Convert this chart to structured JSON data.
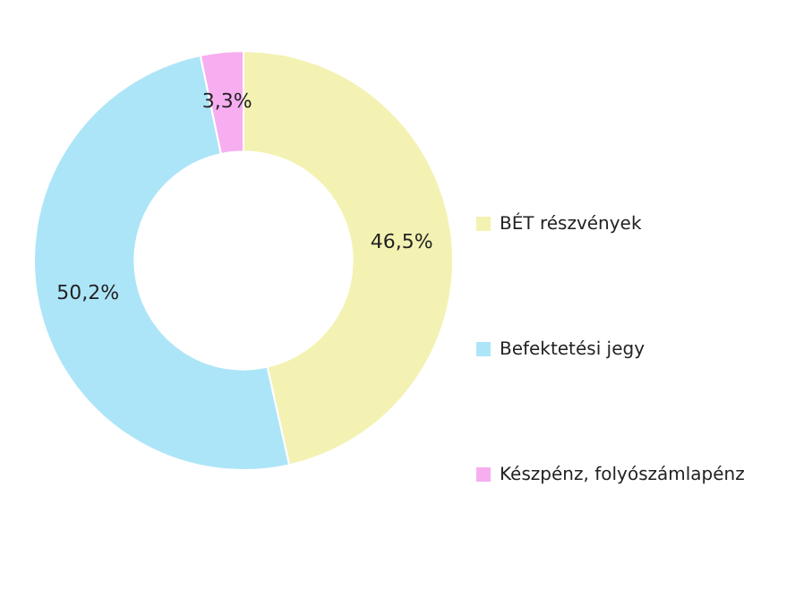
{
  "chart_data": {
    "type": "donut",
    "categories": [
      "BÉT részvények",
      "Befektetési jegy",
      "Készpénz, folyószámlapénz"
    ],
    "values": [
      46.5,
      50.2,
      3.3
    ],
    "colors": [
      "#f3f2b3",
      "#ade5f8",
      "#f7aef0"
    ],
    "value_labels": [
      "46,5%",
      "50,2%",
      "3,3%"
    ],
    "legend": "right"
  }
}
